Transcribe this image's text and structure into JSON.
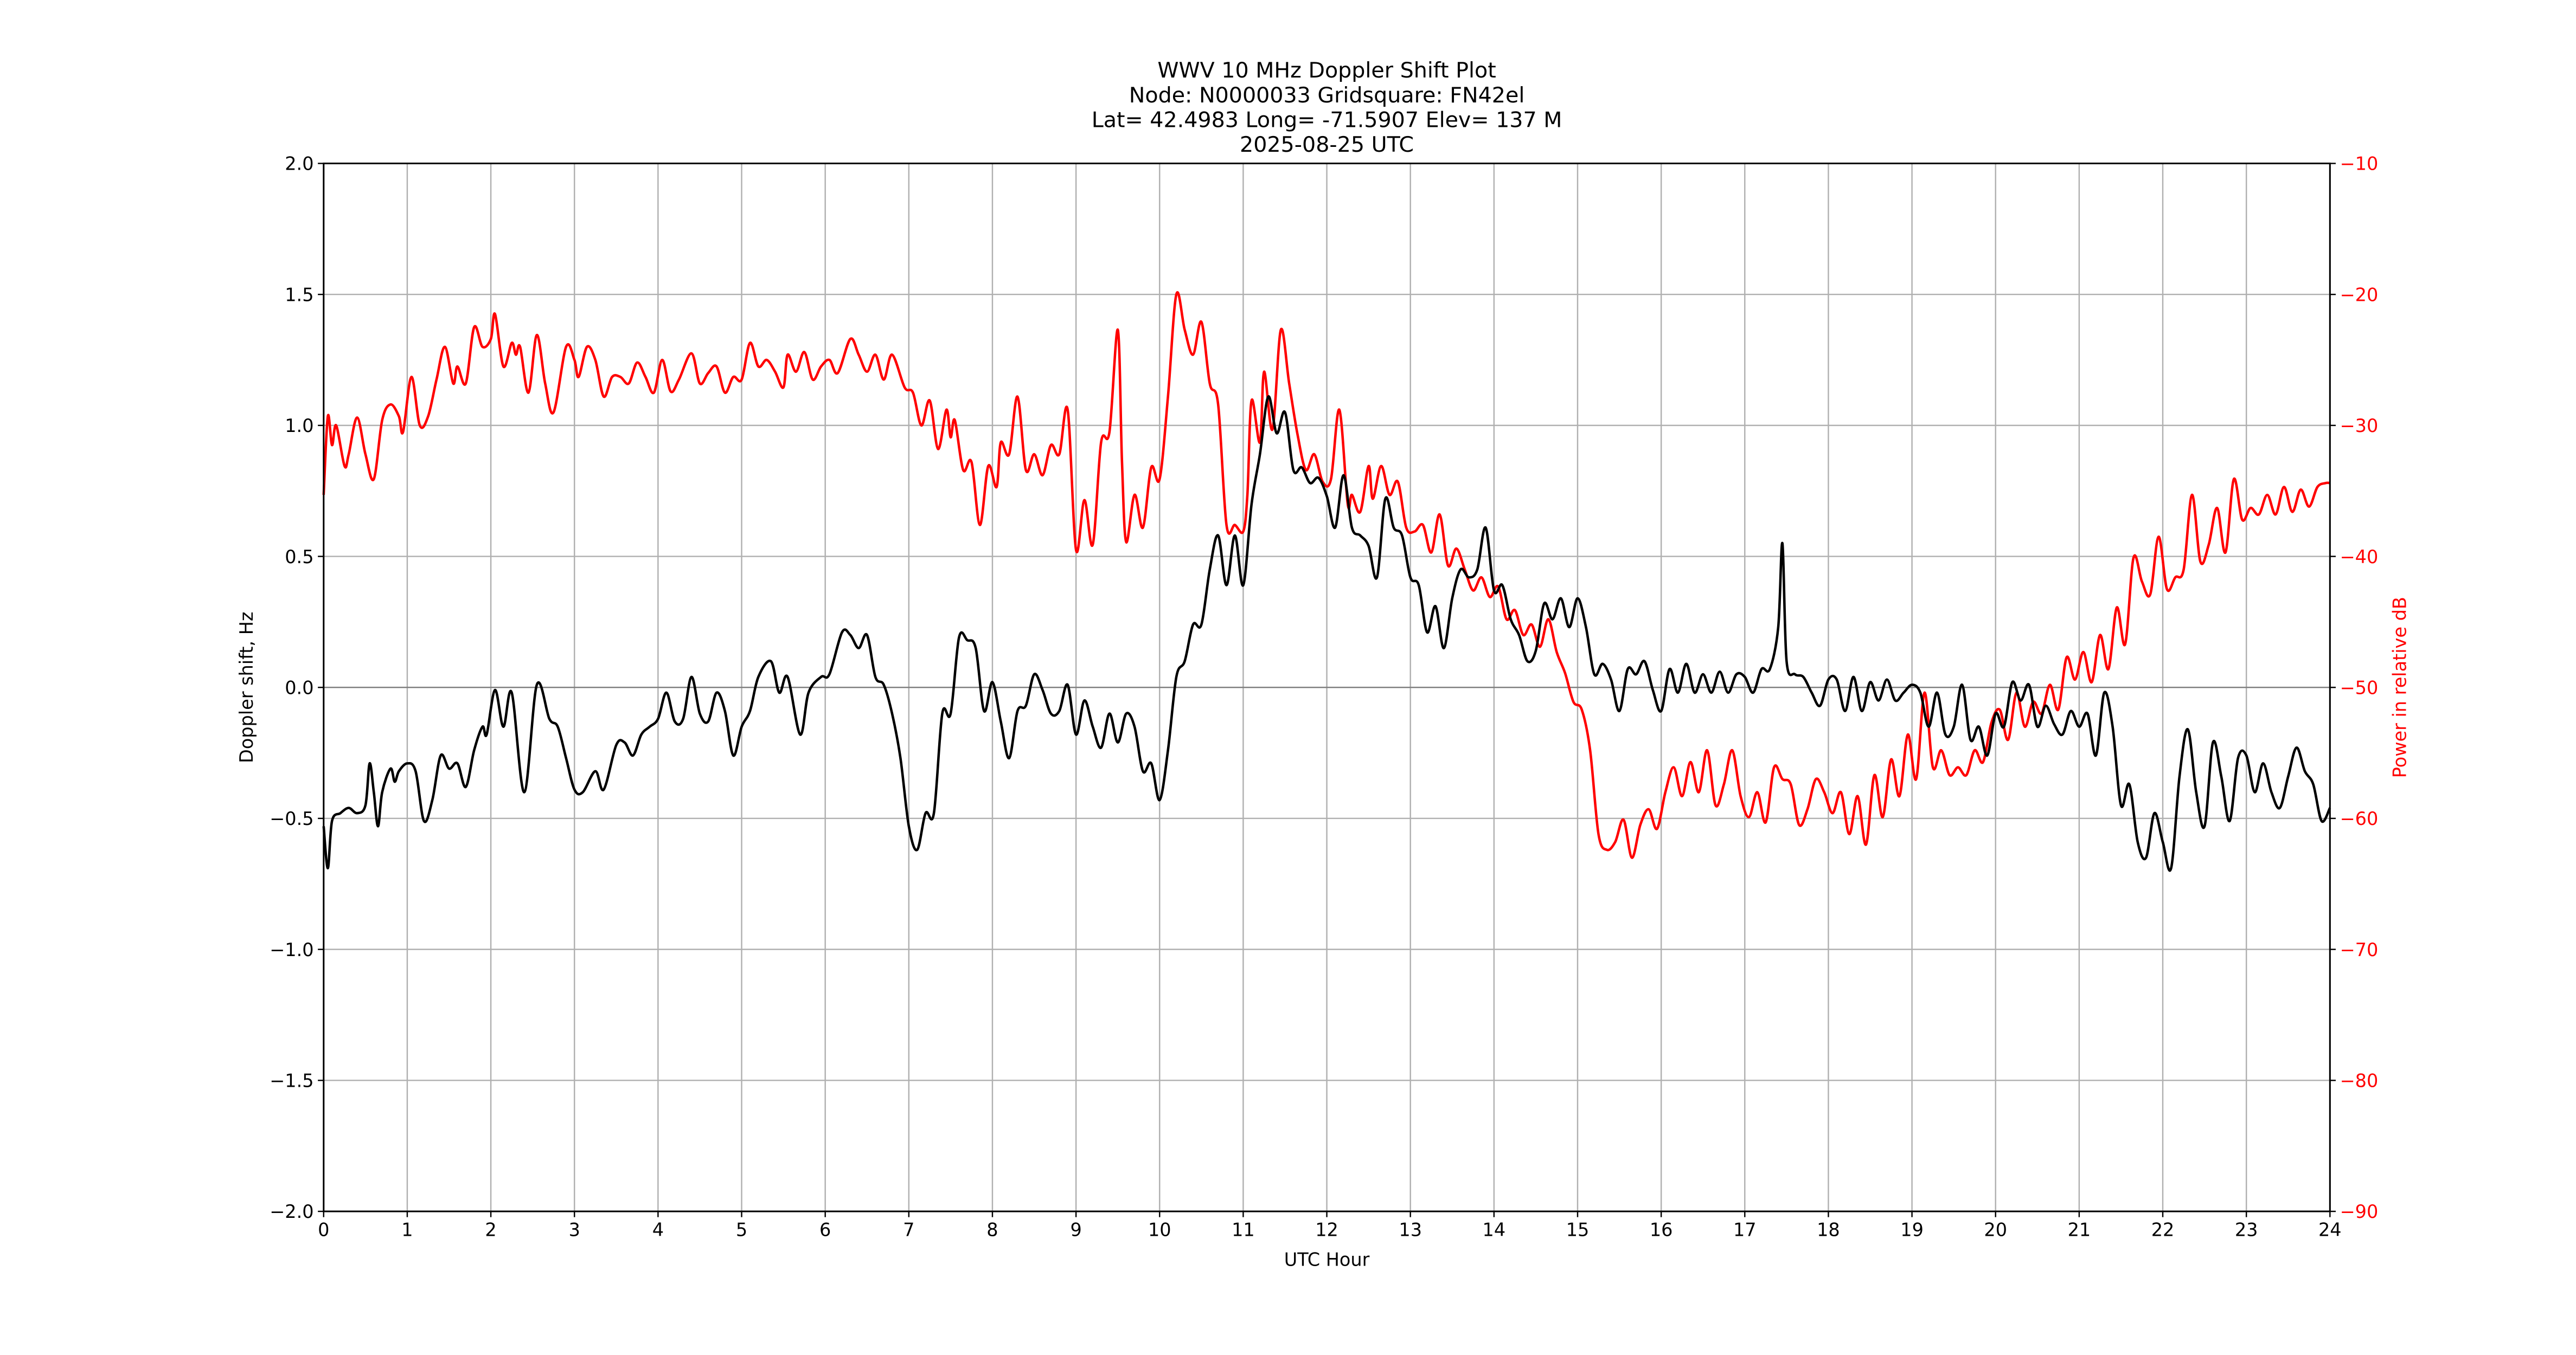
{
  "chart_data": {
    "type": "line",
    "title_lines": [
      "WWV 10 MHz Doppler Shift Plot",
      "Node:  N0000033     Gridsquare:  FN42el",
      "Lat= 42.4983    Long= -71.5907    Elev= 137 M",
      "2025-08-25  UTC"
    ],
    "xlabel": "UTC Hour",
    "ylabel": "Doppler shift, Hz",
    "y2label": "Power in relative dB",
    "xlim": [
      0,
      24
    ],
    "ylim": [
      -2.0,
      2.0
    ],
    "y2lim": [
      -90,
      -10
    ],
    "grid": true,
    "x_ticks": [
      "0",
      "1",
      "2",
      "3",
      "4",
      "5",
      "6",
      "7",
      "8",
      "9",
      "10",
      "11",
      "12",
      "13",
      "14",
      "15",
      "16",
      "17",
      "18",
      "19",
      "20",
      "21",
      "22",
      "23",
      "24"
    ],
    "y_ticks": [
      "2.0",
      "1.5",
      "1.0",
      "0.5",
      "0.0",
      "−0.5",
      "−1.0",
      "−1.5",
      "−2.0"
    ],
    "y2_ticks": [
      "−10",
      "−20",
      "−30",
      "−40",
      "−50",
      "−60",
      "−70",
      "−80",
      "−90"
    ],
    "colors": {
      "doppler": "#000000",
      "power": "#ff0000",
      "grid": "#b0b0b0",
      "zero_line": "#808080"
    },
    "series": [
      {
        "axis": "left",
        "color": "#000000",
        "x": [
          0,
          0.05,
          0.1,
          0.2,
          0.3,
          0.4,
          0.5,
          0.55,
          0.6,
          0.65,
          0.7,
          0.8,
          0.85,
          0.9,
          1.0,
          1.1,
          1.2,
          1.3,
          1.4,
          1.5,
          1.6,
          1.7,
          1.8,
          1.9,
          1.95,
          2.05,
          2.15,
          2.25,
          2.4,
          2.55,
          2.7,
          2.8,
          2.9,
          3.0,
          3.1,
          3.25,
          3.35,
          3.5,
          3.6,
          3.7,
          3.8,
          3.9,
          4.0,
          4.1,
          4.2,
          4.3,
          4.4,
          4.5,
          4.6,
          4.7,
          4.8,
          4.9,
          5.0,
          5.1,
          5.2,
          5.35,
          5.45,
          5.55,
          5.7,
          5.8,
          5.95,
          6.05,
          6.2,
          6.3,
          6.4,
          6.5,
          6.6,
          6.7,
          6.8,
          6.9,
          7.0,
          7.1,
          7.2,
          7.3,
          7.4,
          7.5,
          7.6,
          7.7,
          7.8,
          7.9,
          8.0,
          8.1,
          8.2,
          8.3,
          8.4,
          8.5,
          8.6,
          8.7,
          8.8,
          8.9,
          9.0,
          9.1,
          9.2,
          9.3,
          9.4,
          9.5,
          9.6,
          9.7,
          9.8,
          9.9,
          10.0,
          10.1,
          10.2,
          10.3,
          10.4,
          10.5,
          10.6,
          10.7,
          10.8,
          10.9,
          11.0,
          11.1,
          11.2,
          11.3,
          11.4,
          11.5,
          11.6,
          11.7,
          11.8,
          11.9,
          12.0,
          12.1,
          12.2,
          12.3,
          12.4,
          12.5,
          12.6,
          12.7,
          12.8,
          12.9,
          13.0,
          13.1,
          13.2,
          13.3,
          13.4,
          13.5,
          13.6,
          13.7,
          13.8,
          13.9,
          14.0,
          14.1,
          14.2,
          14.3,
          14.4,
          14.5,
          14.6,
          14.7,
          14.8,
          14.9,
          15.0,
          15.1,
          15.2,
          15.3,
          15.4,
          15.5,
          15.6,
          15.7,
          15.8,
          15.9,
          16.0,
          16.1,
          16.2,
          16.3,
          16.4,
          16.5,
          16.6,
          16.7,
          16.8,
          16.9,
          17.0,
          17.1,
          17.2,
          17.3,
          17.4,
          17.45,
          17.5,
          17.6,
          17.7,
          17.8,
          17.9,
          18.0,
          18.1,
          18.2,
          18.3,
          18.4,
          18.5,
          18.6,
          18.7,
          18.8,
          18.9,
          19.0,
          19.1,
          19.2,
          19.3,
          19.4,
          19.5,
          19.6,
          19.7,
          19.8,
          19.9,
          20.0,
          20.1,
          20.2,
          20.3,
          20.4,
          20.5,
          20.6,
          20.7,
          20.8,
          20.9,
          21.0,
          21.1,
          21.2,
          21.3,
          21.4,
          21.5,
          21.6,
          21.7,
          21.8,
          21.9,
          22.0,
          22.1,
          22.2,
          22.3,
          22.4,
          22.5,
          22.6,
          22.7,
          22.8,
          22.9,
          23.0,
          23.1,
          23.2,
          23.3,
          23.4,
          23.5,
          23.6,
          23.7,
          23.8,
          23.9,
          24.0
        ],
        "y": [
          -0.53,
          -0.69,
          -0.51,
          -0.48,
          -0.46,
          -0.48,
          -0.45,
          -0.29,
          -0.4,
          -0.53,
          -0.4,
          -0.31,
          -0.36,
          -0.32,
          -0.29,
          -0.32,
          -0.51,
          -0.43,
          -0.26,
          -0.31,
          -0.29,
          -0.38,
          -0.24,
          -0.15,
          -0.18,
          -0.01,
          -0.15,
          -0.02,
          -0.4,
          0.01,
          -0.12,
          -0.15,
          -0.27,
          -0.39,
          -0.4,
          -0.32,
          -0.39,
          -0.22,
          -0.21,
          -0.26,
          -0.18,
          -0.15,
          -0.12,
          -0.02,
          -0.13,
          -0.12,
          0.04,
          -0.1,
          -0.13,
          -0.02,
          -0.09,
          -0.26,
          -0.15,
          -0.09,
          0.04,
          0.1,
          -0.02,
          0.04,
          -0.18,
          -0.02,
          0.04,
          0.05,
          0.21,
          0.2,
          0.15,
          0.2,
          0.04,
          0.01,
          -0.1,
          -0.27,
          -0.53,
          -0.62,
          -0.48,
          -0.48,
          -0.1,
          -0.1,
          0.19,
          0.18,
          0.15,
          -0.09,
          0.02,
          -0.13,
          -0.27,
          -0.09,
          -0.07,
          0.05,
          -0.01,
          -0.1,
          -0.09,
          0.01,
          -0.18,
          -0.05,
          -0.15,
          -0.23,
          -0.1,
          -0.21,
          -0.1,
          -0.15,
          -0.32,
          -0.29,
          -0.43,
          -0.24,
          0.04,
          0.1,
          0.24,
          0.24,
          0.45,
          0.58,
          0.39,
          0.58,
          0.39,
          0.7,
          0.89,
          1.11,
          0.97,
          1.05,
          0.83,
          0.84,
          0.78,
          0.8,
          0.73,
          0.61,
          0.81,
          0.61,
          0.58,
          0.54,
          0.42,
          0.72,
          0.61,
          0.58,
          0.42,
          0.39,
          0.21,
          0.31,
          0.15,
          0.34,
          0.45,
          0.42,
          0.45,
          0.61,
          0.37,
          0.39,
          0.26,
          0.2,
          0.1,
          0.14,
          0.32,
          0.26,
          0.34,
          0.23,
          0.34,
          0.23,
          0.05,
          0.09,
          0.03,
          -0.09,
          0.07,
          0.05,
          0.1,
          -0.01,
          -0.09,
          0.07,
          -0.02,
          0.09,
          -0.02,
          0.05,
          -0.02,
          0.06,
          -0.02,
          0.05,
          0.04,
          -0.02,
          0.07,
          0.07,
          0.23,
          0.55,
          0.1,
          0.05,
          0.04,
          -0.02,
          -0.07,
          0.03,
          0.03,
          -0.09,
          0.04,
          -0.09,
          0.02,
          -0.05,
          0.03,
          -0.05,
          -0.02,
          0.01,
          -0.02,
          -0.15,
          -0.02,
          -0.18,
          -0.15,
          0.01,
          -0.2,
          -0.15,
          -0.26,
          -0.1,
          -0.15,
          0.02,
          -0.05,
          0.01,
          -0.15,
          -0.07,
          -0.14,
          -0.18,
          -0.09,
          -0.15,
          -0.1,
          -0.26,
          -0.02,
          -0.15,
          -0.45,
          -0.37,
          -0.59,
          -0.65,
          -0.48,
          -0.59,
          -0.69,
          -0.34,
          -0.16,
          -0.4,
          -0.53,
          -0.21,
          -0.34,
          -0.51,
          -0.27,
          -0.26,
          -0.4,
          -0.29,
          -0.4,
          -0.46,
          -0.34,
          -0.23,
          -0.32,
          -0.37,
          -0.51,
          -0.46
        ]
      },
      {
        "axis": "right",
        "color": "#ff0000",
        "x": [
          0,
          0.05,
          0.1,
          0.15,
          0.25,
          0.3,
          0.4,
          0.5,
          0.6,
          0.7,
          0.8,
          0.9,
          0.95,
          1.05,
          1.15,
          1.25,
          1.35,
          1.45,
          1.55,
          1.6,
          1.7,
          1.8,
          1.9,
          2.0,
          2.05,
          2.15,
          2.25,
          2.3,
          2.35,
          2.45,
          2.55,
          2.65,
          2.75,
          2.9,
          3.0,
          3.05,
          3.15,
          3.25,
          3.35,
          3.45,
          3.55,
          3.65,
          3.75,
          3.85,
          3.95,
          4.05,
          4.15,
          4.25,
          4.4,
          4.5,
          4.6,
          4.7,
          4.8,
          4.9,
          5.0,
          5.1,
          5.2,
          5.3,
          5.4,
          5.5,
          5.55,
          5.65,
          5.75,
          5.85,
          5.95,
          6.05,
          6.15,
          6.3,
          6.4,
          6.5,
          6.6,
          6.7,
          6.8,
          6.95,
          7.05,
          7.15,
          7.25,
          7.35,
          7.45,
          7.5,
          7.55,
          7.65,
          7.75,
          7.85,
          7.95,
          8.05,
          8.1,
          8.2,
          8.3,
          8.4,
          8.5,
          8.6,
          8.7,
          8.8,
          8.9,
          9.0,
          9.1,
          9.2,
          9.3,
          9.4,
          9.5,
          9.55,
          9.6,
          9.7,
          9.8,
          9.9,
          10.0,
          10.1,
          10.2,
          10.3,
          10.4,
          10.5,
          10.6,
          10.7,
          10.8,
          10.9,
          11.0,
          11.05,
          11.1,
          11.2,
          11.25,
          11.35,
          11.45,
          11.55,
          11.65,
          11.75,
          11.85,
          11.95,
          12.05,
          12.15,
          12.25,
          12.3,
          12.4,
          12.5,
          12.55,
          12.65,
          12.75,
          12.85,
          12.95,
          13.05,
          13.15,
          13.25,
          13.35,
          13.45,
          13.55,
          13.65,
          13.75,
          13.85,
          13.95,
          14.05,
          14.15,
          14.25,
          14.35,
          14.45,
          14.55,
          14.65,
          14.75,
          14.85,
          14.95,
          15.05,
          15.15,
          15.25,
          15.35,
          15.45,
          15.55,
          15.65,
          15.75,
          15.85,
          15.95,
          16.05,
          16.15,
          16.25,
          16.35,
          16.45,
          16.55,
          16.65,
          16.75,
          16.85,
          16.95,
          17.05,
          17.15,
          17.25,
          17.35,
          17.45,
          17.55,
          17.65,
          17.75,
          17.85,
          17.95,
          18.05,
          18.15,
          18.25,
          18.35,
          18.45,
          18.55,
          18.65,
          18.75,
          18.85,
          18.95,
          19.05,
          19.15,
          19.25,
          19.35,
          19.45,
          19.55,
          19.65,
          19.75,
          19.85,
          19.95,
          20.05,
          20.15,
          20.25,
          20.35,
          20.45,
          20.55,
          20.65,
          20.75,
          20.85,
          20.95,
          21.05,
          21.15,
          21.25,
          21.35,
          21.45,
          21.55,
          21.65,
          21.75,
          21.85,
          21.95,
          22.05,
          22.15,
          22.25,
          22.35,
          22.45,
          22.55,
          22.65,
          22.75,
          22.85,
          22.95,
          23.05,
          23.15,
          23.25,
          23.35,
          23.45,
          23.55,
          23.65,
          23.75,
          23.85,
          23.95,
          24.0
        ],
        "y": [
          -35.3,
          -29.3,
          -31.5,
          -30.0,
          -33.1,
          -32.2,
          -29.4,
          -32.2,
          -34.1,
          -29.6,
          -28.4,
          -29.3,
          -30.5,
          -26.3,
          -30.0,
          -29.3,
          -26.5,
          -24.0,
          -26.8,
          -25.5,
          -26.8,
          -22.5,
          -24.0,
          -23.4,
          -21.5,
          -25.5,
          -23.7,
          -24.6,
          -24.0,
          -27.5,
          -23.1,
          -26.8,
          -29.0,
          -24.0,
          -25.0,
          -26.3,
          -24.0,
          -25.0,
          -27.8,
          -26.3,
          -26.3,
          -26.8,
          -25.2,
          -26.3,
          -27.5,
          -25.0,
          -27.4,
          -26.5,
          -24.5,
          -26.8,
          -26.0,
          -25.5,
          -27.5,
          -26.3,
          -26.5,
          -23.7,
          -25.5,
          -25.0,
          -25.9,
          -27.1,
          -24.6,
          -25.9,
          -24.4,
          -26.5,
          -25.5,
          -25.0,
          -26.0,
          -23.4,
          -24.6,
          -25.9,
          -24.6,
          -26.5,
          -24.6,
          -27.1,
          -27.5,
          -30.0,
          -28.1,
          -31.8,
          -28.8,
          -30.9,
          -29.6,
          -33.4,
          -32.8,
          -37.6,
          -33.1,
          -34.7,
          -31.3,
          -32.2,
          -27.8,
          -33.4,
          -32.2,
          -33.8,
          -31.5,
          -32.2,
          -28.8,
          -39.5,
          -35.7,
          -39.1,
          -31.3,
          -30.5,
          -22.7,
          -32.8,
          -38.9,
          -35.3,
          -37.8,
          -33.2,
          -34.1,
          -27.8,
          -20.0,
          -22.7,
          -24.6,
          -22.1,
          -26.8,
          -28.4,
          -37.6,
          -37.6,
          -38.1,
          -35.3,
          -28.1,
          -31.3,
          -25.9,
          -30.3,
          -22.7,
          -26.8,
          -30.7,
          -33.4,
          -32.2,
          -34.3,
          -34.1,
          -28.8,
          -36.0,
          -35.3,
          -36.6,
          -33.1,
          -35.6,
          -33.1,
          -35.3,
          -34.3,
          -37.8,
          -38.1,
          -37.6,
          -39.7,
          -36.8,
          -40.7,
          -39.4,
          -41.0,
          -42.6,
          -41.6,
          -43.1,
          -42.3,
          -44.8,
          -44.1,
          -46.0,
          -45.2,
          -46.9,
          -44.8,
          -47.3,
          -48.9,
          -51.1,
          -51.7,
          -54.8,
          -61.2,
          -62.4,
          -61.8,
          -60.1,
          -63.0,
          -60.5,
          -59.3,
          -60.8,
          -58.0,
          -56.1,
          -58.3,
          -55.7,
          -58.0,
          -54.8,
          -59.0,
          -57.4,
          -54.8,
          -58.3,
          -59.9,
          -58.0,
          -60.3,
          -56.1,
          -57.0,
          -57.4,
          -60.5,
          -59.3,
          -57.0,
          -58.0,
          -59.6,
          -58.0,
          -61.2,
          -58.3,
          -62.0,
          -56.7,
          -59.9,
          -55.5,
          -58.3,
          -53.6,
          -57.0,
          -50.4,
          -56.1,
          -54.8,
          -56.7,
          -56.1,
          -56.7,
          -54.8,
          -55.7,
          -52.7,
          -51.7,
          -54.0,
          -50.4,
          -53.0,
          -51.1,
          -52.0,
          -49.8,
          -51.7,
          -47.7,
          -49.4,
          -47.3,
          -49.6,
          -46.0,
          -48.6,
          -43.9,
          -46.7,
          -40.1,
          -41.9,
          -42.9,
          -38.5,
          -42.5,
          -41.6,
          -41.0,
          -35.3,
          -40.4,
          -39.1,
          -36.3,
          -39.7,
          -34.1,
          -37.2,
          -36.3,
          -36.8,
          -35.3,
          -36.8,
          -34.7,
          -36.6,
          -34.9,
          -36.2,
          -34.7,
          -34.4,
          -34.4
        ]
      }
    ]
  }
}
